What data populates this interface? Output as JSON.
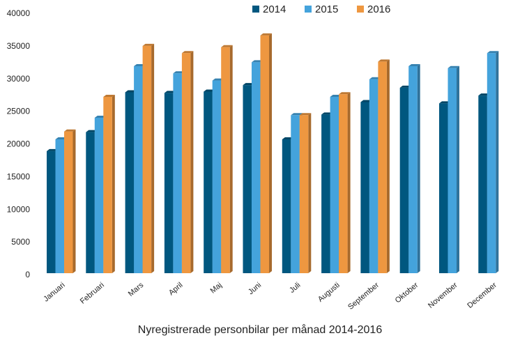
{
  "chart_data": {
    "type": "bar",
    "title": "Nyregistrerade personbilar per månad 2014-2016",
    "xlabel": "Nyregistrerade personbilar per månad 2014-2016",
    "ylabel": "",
    "ylim": [
      0,
      40000
    ],
    "yticks": [
      0,
      5000,
      10000,
      15000,
      20000,
      25000,
      30000,
      35000,
      40000
    ],
    "grid": false,
    "legend_position": "top",
    "categories": [
      "Januari",
      "Februari",
      "Mars",
      "April",
      "Maj",
      "Juni",
      "Juli",
      "Augusti",
      "September",
      "Oktober",
      "November",
      "December"
    ],
    "series": [
      {
        "name": "2014",
        "color": "#00577f",
        "values": [
          18900,
          21800,
          27900,
          27800,
          28000,
          29000,
          20700,
          24500,
          26400,
          28600,
          26200,
          27400
        ]
      },
      {
        "name": "2015",
        "color": "#44a3dc",
        "values": [
          20700,
          24000,
          31900,
          30800,
          29700,
          32500,
          24400,
          27200,
          29900,
          31900,
          31600,
          33900
        ]
      },
      {
        "name": "2016",
        "color": "#ee9740",
        "values": [
          21900,
          27200,
          35000,
          33900,
          34800,
          36600,
          24400,
          27600,
          32600,
          null,
          null,
          null
        ]
      }
    ]
  }
}
